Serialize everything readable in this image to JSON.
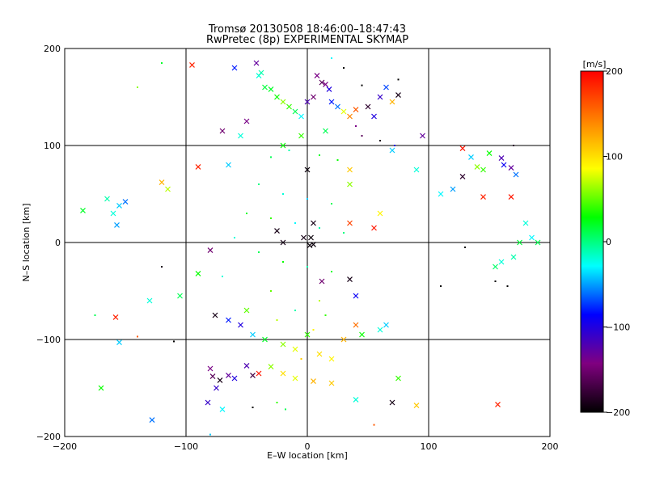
{
  "chart_data": {
    "type": "scatter",
    "title": "Tromsø 20130508 18:46:00–18:47:43",
    "subtitle": "RwPretec (8p) EXPERIMENTAL SKYMAP",
    "xlabel": "E–W location [km]",
    "ylabel": "N–S location [km]",
    "xlim": [
      -200,
      200
    ],
    "ylim": [
      -200,
      200
    ],
    "xticks": [
      -200,
      -100,
      0,
      100,
      200
    ],
    "yticks": [
      -200,
      -100,
      0,
      100,
      200
    ],
    "x_tick_labels": [
      "−200",
      "−100",
      "0",
      "100",
      "200"
    ],
    "y_tick_labels": [
      "−200",
      "−100",
      "0",
      "100",
      "200"
    ],
    "grid": true,
    "colorbar": {
      "label": "[m/s]",
      "range": [
        -200,
        200
      ],
      "ticks": [
        200,
        100,
        0,
        -100,
        -200
      ],
      "tick_labels": [
        "200",
        "100",
        "0",
        "−100",
        "−200"
      ],
      "colors": [
        "#000000",
        "#800080",
        "#0000ff",
        "#00ffff",
        "#00ff00",
        "#ffff00",
        "#ff8000",
        "#ff0000"
      ]
    },
    "marker_types": [
      "dot",
      "x"
    ],
    "points": [
      [
        -95,
        183,
        185,
        "x"
      ],
      [
        -60,
        180,
        -80,
        "x"
      ],
      [
        -42,
        185,
        -130,
        "x"
      ],
      [
        -40,
        172,
        -20,
        "x"
      ],
      [
        -38,
        175,
        -10,
        "x"
      ],
      [
        -35,
        160,
        15,
        "x"
      ],
      [
        -30,
        158,
        20,
        "x"
      ],
      [
        -25,
        150,
        30,
        "x"
      ],
      [
        -20,
        145,
        60,
        "x"
      ],
      [
        -15,
        140,
        40,
        "x"
      ],
      [
        -10,
        135,
        10,
        "x"
      ],
      [
        -5,
        130,
        -30,
        "x"
      ],
      [
        0,
        145,
        -120,
        "x"
      ],
      [
        5,
        150,
        -150,
        "x"
      ],
      [
        8,
        172,
        -140,
        "x"
      ],
      [
        12,
        165,
        -160,
        "x"
      ],
      [
        15,
        163,
        -140,
        "x"
      ],
      [
        18,
        158,
        -100,
        "x"
      ],
      [
        20,
        145,
        -80,
        "x"
      ],
      [
        25,
        140,
        -60,
        "x"
      ],
      [
        30,
        135,
        80,
        "x"
      ],
      [
        35,
        130,
        140,
        "x"
      ],
      [
        40,
        137,
        160,
        "x"
      ],
      [
        50,
        140,
        -180,
        "x"
      ],
      [
        55,
        130,
        -100,
        "x"
      ],
      [
        60,
        150,
        -110,
        "x"
      ],
      [
        65,
        160,
        -70,
        "x"
      ],
      [
        70,
        145,
        120,
        "x"
      ],
      [
        75,
        152,
        -190,
        "x"
      ],
      [
        -50,
        125,
        -140,
        "x"
      ],
      [
        -55,
        110,
        -20,
        "x"
      ],
      [
        -70,
        115,
        -150,
        "x"
      ],
      [
        -65,
        80,
        -40,
        "x"
      ],
      [
        -90,
        78,
        185,
        "x"
      ],
      [
        -120,
        62,
        120,
        "x"
      ],
      [
        -115,
        55,
        70,
        "x"
      ],
      [
        -150,
        42,
        -60,
        "x"
      ],
      [
        -155,
        38,
        -40,
        "x"
      ],
      [
        -160,
        30,
        -20,
        "x"
      ],
      [
        -165,
        45,
        -10,
        "x"
      ],
      [
        -157,
        18,
        -50,
        "x"
      ],
      [
        -185,
        33,
        20,
        "x"
      ],
      [
        128,
        97,
        190,
        "x"
      ],
      [
        135,
        88,
        -40,
        "x"
      ],
      [
        140,
        78,
        60,
        "x"
      ],
      [
        145,
        75,
        40,
        "x"
      ],
      [
        150,
        92,
        30,
        "x"
      ],
      [
        160,
        87,
        -120,
        "x"
      ],
      [
        162,
        80,
        -90,
        "x"
      ],
      [
        168,
        77,
        -130,
        "x"
      ],
      [
        172,
        70,
        -60,
        "x"
      ],
      [
        128,
        68,
        -180,
        "x"
      ],
      [
        145,
        47,
        185,
        "x"
      ],
      [
        168,
        47,
        190,
        "x"
      ],
      [
        120,
        55,
        -50,
        "x"
      ],
      [
        110,
        50,
        -30,
        "x"
      ],
      [
        180,
        20,
        -20,
        "x"
      ],
      [
        185,
        5,
        -30,
        "x"
      ],
      [
        190,
        0,
        10,
        "x"
      ],
      [
        175,
        0,
        15,
        "x"
      ],
      [
        170,
        -15,
        -10,
        "x"
      ],
      [
        160,
        -20,
        -20,
        "x"
      ],
      [
        155,
        -25,
        5,
        "x"
      ],
      [
        -158,
        -77,
        185,
        "x"
      ],
      [
        -155,
        -103,
        -40,
        "x"
      ],
      [
        -130,
        -60,
        -20,
        "x"
      ],
      [
        -105,
        -55,
        10,
        "x"
      ],
      [
        -90,
        -32,
        30,
        "x"
      ],
      [
        -80,
        -8,
        -150,
        "x"
      ],
      [
        -76,
        -75,
        -190,
        "x"
      ],
      [
        -65,
        -80,
        -80,
        "x"
      ],
      [
        -55,
        -85,
        -100,
        "x"
      ],
      [
        -50,
        -70,
        50,
        "x"
      ],
      [
        -45,
        -95,
        -40,
        "x"
      ],
      [
        -35,
        -100,
        20,
        "x"
      ],
      [
        -20,
        -105,
        60,
        "x"
      ],
      [
        -10,
        -110,
        80,
        "x"
      ],
      [
        0,
        -95,
        40,
        "x"
      ],
      [
        10,
        -115,
        100,
        "x"
      ],
      [
        20,
        -120,
        90,
        "x"
      ],
      [
        30,
        -100,
        120,
        "x"
      ],
      [
        40,
        -85,
        150,
        "x"
      ],
      [
        45,
        -95,
        30,
        "x"
      ],
      [
        60,
        -90,
        -20,
        "x"
      ],
      [
        65,
        -85,
        -40,
        "x"
      ],
      [
        -80,
        -130,
        -140,
        "x"
      ],
      [
        -78,
        -138,
        -160,
        "x"
      ],
      [
        -75,
        -150,
        -110,
        "x"
      ],
      [
        -72,
        -142,
        -190,
        "x"
      ],
      [
        -65,
        -137,
        -130,
        "x"
      ],
      [
        -60,
        -140,
        -100,
        "x"
      ],
      [
        -50,
        -127,
        -120,
        "x"
      ],
      [
        -45,
        -137,
        -170,
        "x"
      ],
      [
        -40,
        -135,
        190,
        "x"
      ],
      [
        -30,
        -128,
        60,
        "x"
      ],
      [
        -20,
        -135,
        100,
        "x"
      ],
      [
        -10,
        -140,
        80,
        "x"
      ],
      [
        5,
        -143,
        120,
        "x"
      ],
      [
        20,
        -145,
        110,
        "x"
      ],
      [
        40,
        -162,
        -20,
        "x"
      ],
      [
        70,
        -165,
        -190,
        "x"
      ],
      [
        75,
        -140,
        40,
        "x"
      ],
      [
        90,
        -168,
        110,
        "x"
      ],
      [
        -170,
        -150,
        30,
        "x"
      ],
      [
        -128,
        -183,
        -60,
        "x"
      ],
      [
        -70,
        -172,
        -30,
        "x"
      ],
      [
        -82,
        -165,
        -110,
        "x"
      ],
      [
        157,
        -167,
        185,
        "x"
      ],
      [
        0,
        75,
        -195,
        "x"
      ],
      [
        5,
        20,
        -190,
        "x"
      ],
      [
        3,
        5,
        -195,
        "x"
      ],
      [
        -3,
        5,
        -190,
        "x"
      ],
      [
        2,
        -3,
        -195,
        "x"
      ],
      [
        5,
        -2,
        -195,
        "x"
      ],
      [
        -20,
        0,
        -190,
        "x"
      ],
      [
        -25,
        12,
        -190,
        "x"
      ],
      [
        12,
        -40,
        -150,
        "x"
      ],
      [
        35,
        -38,
        -190,
        "x"
      ],
      [
        40,
        -55,
        -90,
        "x"
      ],
      [
        35,
        60,
        60,
        "x"
      ],
      [
        35,
        75,
        110,
        "x"
      ],
      [
        60,
        30,
        90,
        "x"
      ],
      [
        55,
        15,
        190,
        "x"
      ],
      [
        35,
        20,
        170,
        "x"
      ],
      [
        -20,
        100,
        30,
        "x"
      ],
      [
        -5,
        110,
        40,
        "x"
      ],
      [
        15,
        115,
        10,
        "x"
      ],
      [
        70,
        95,
        -40,
        "x"
      ],
      [
        90,
        75,
        -20,
        "x"
      ],
      [
        95,
        110,
        -130,
        "x"
      ],
      [
        -175,
        -75,
        10,
        "dot"
      ],
      [
        -120,
        -25,
        -190,
        "dot"
      ],
      [
        -110,
        -102,
        -200,
        "dot"
      ],
      [
        -140,
        -97,
        160,
        "dot"
      ],
      [
        -140,
        160,
        60,
        "dot"
      ],
      [
        -120,
        185,
        20,
        "dot"
      ],
      [
        -80,
        -198,
        -40,
        "dot"
      ],
      [
        55,
        -188,
        160,
        "dot"
      ],
      [
        110,
        -45,
        -200,
        "dot"
      ],
      [
        165,
        -45,
        -200,
        "dot"
      ],
      [
        155,
        -40,
        -200,
        "dot"
      ],
      [
        170,
        100,
        -180,
        "dot"
      ],
      [
        60,
        105,
        -190,
        "dot"
      ],
      [
        72,
        100,
        -100,
        "dot"
      ],
      [
        45,
        110,
        -160,
        "dot"
      ],
      [
        40,
        120,
        -140,
        "dot"
      ],
      [
        30,
        180,
        -200,
        "dot"
      ],
      [
        45,
        162,
        -200,
        "dot"
      ],
      [
        75,
        168,
        -200,
        "dot"
      ],
      [
        20,
        190,
        -30,
        "dot"
      ],
      [
        -45,
        -170,
        -200,
        "dot"
      ],
      [
        -25,
        -165,
        40,
        "dot"
      ],
      [
        -18,
        -172,
        10,
        "dot"
      ],
      [
        130,
        -5,
        -200,
        "dot"
      ],
      [
        -30,
        88,
        10,
        "dot"
      ],
      [
        -15,
        95,
        -10,
        "dot"
      ],
      [
        10,
        90,
        20,
        "dot"
      ],
      [
        25,
        85,
        30,
        "dot"
      ],
      [
        -40,
        60,
        0,
        "dot"
      ],
      [
        -20,
        50,
        -20,
        "dot"
      ],
      [
        0,
        45,
        -40,
        "dot"
      ],
      [
        20,
        40,
        10,
        "dot"
      ],
      [
        -50,
        30,
        20,
        "dot"
      ],
      [
        -30,
        25,
        40,
        "dot"
      ],
      [
        -10,
        20,
        -30,
        "dot"
      ],
      [
        10,
        15,
        -10,
        "dot"
      ],
      [
        30,
        10,
        0,
        "dot"
      ],
      [
        -60,
        5,
        -20,
        "dot"
      ],
      [
        -40,
        -10,
        10,
        "dot"
      ],
      [
        -20,
        -20,
        30,
        "dot"
      ],
      [
        0,
        -25,
        -10,
        "dot"
      ],
      [
        20,
        -30,
        20,
        "dot"
      ],
      [
        -70,
        -35,
        -20,
        "dot"
      ],
      [
        -30,
        -50,
        50,
        "dot"
      ],
      [
        10,
        -60,
        70,
        "dot"
      ],
      [
        -10,
        -70,
        -10,
        "dot"
      ],
      [
        15,
        -75,
        40,
        "dot"
      ],
      [
        -25,
        -80,
        70,
        "dot"
      ],
      [
        5,
        -90,
        90,
        "dot"
      ],
      [
        -5,
        -120,
        110,
        "dot"
      ]
    ]
  }
}
